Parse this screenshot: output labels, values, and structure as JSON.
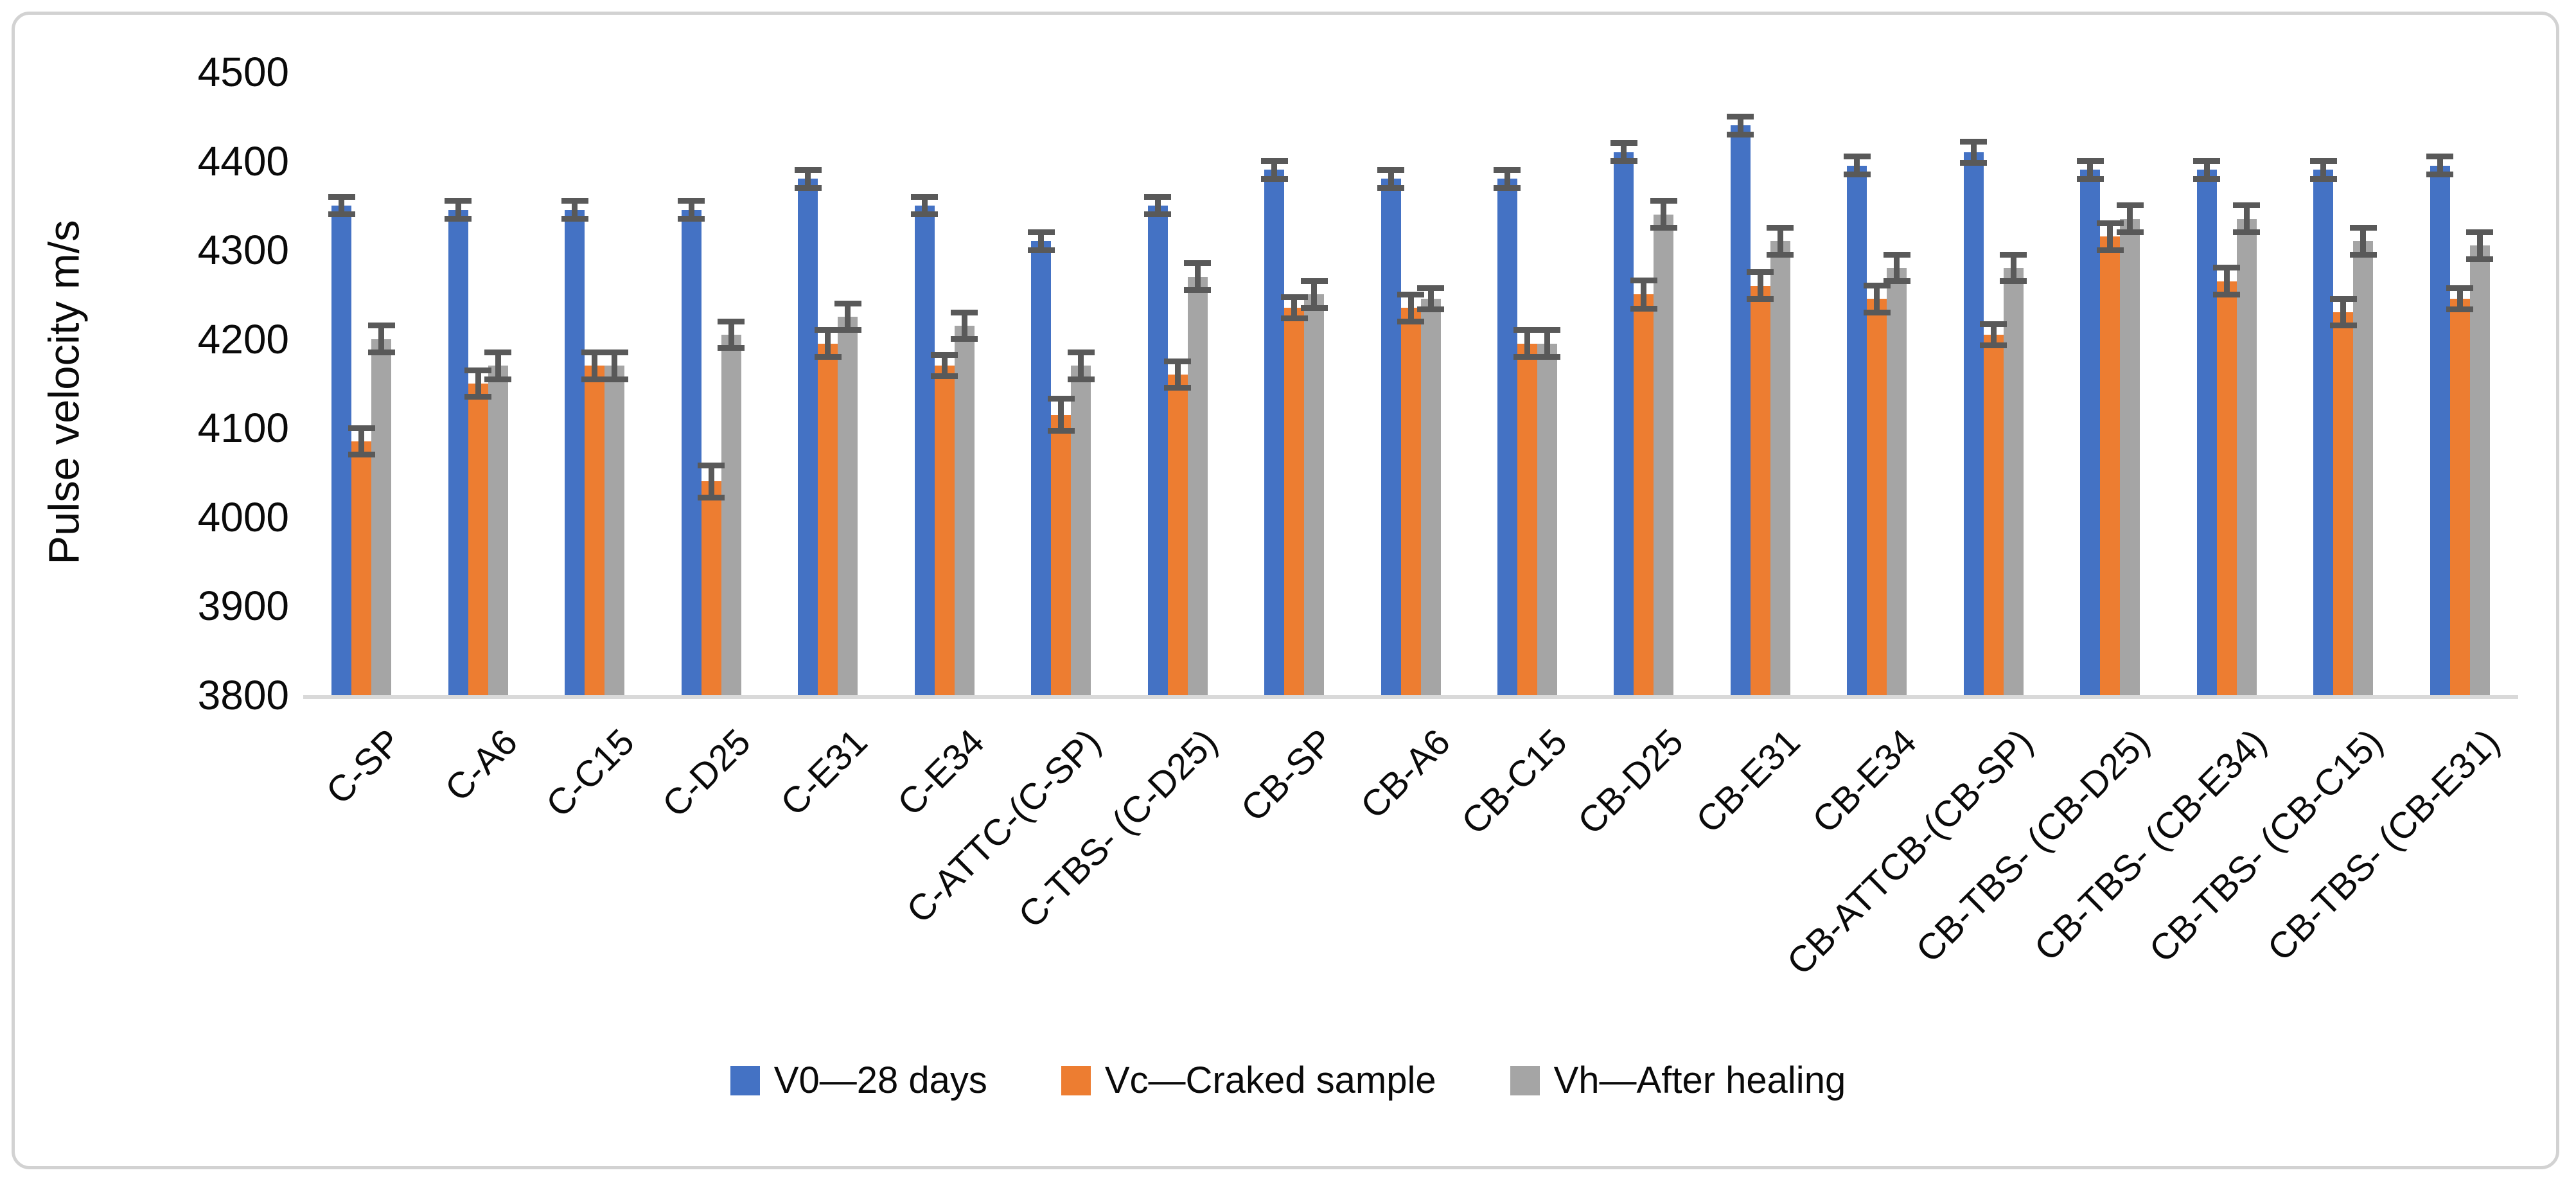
{
  "chart_data": {
    "type": "bar",
    "title": "",
    "ylabel": "Pulse velocity m/s",
    "xlabel": "",
    "ylim": [
      3800,
      4500
    ],
    "ytick_step": 100,
    "yticks": [
      4500,
      4400,
      4300,
      4200,
      4100,
      4000,
      3900,
      3800
    ],
    "grid": false,
    "legend_position": "bottom",
    "error_bar_color": "#595959",
    "axis_line_color": "#d9d9d9",
    "categories": [
      "C-SP",
      "C-A6",
      "C-C15",
      "C-D25",
      "C-E31",
      "C-E34",
      "C-ATTC-(C-SP)",
      "C-TBS- (C-D25)",
      "CB-SP",
      "CB-A6",
      "CB-C15",
      "CB-D25",
      "CB-E31",
      "CB-E34",
      "CB-ATTCB-(CB-SP)",
      "CB-TBS- (CB-D25)",
      "CB-TBS- (CB-E34)",
      "CB-TBS- (CB-C15)",
      "CB-TBS- (CB-E31)"
    ],
    "series": [
      {
        "key": "v0",
        "name": "V0—28 days",
        "color": "#4472C4",
        "values": [
          4350,
          4345,
          4345,
          4345,
          4380,
          4350,
          4310,
          4350,
          4390,
          4380,
          4380,
          4410,
          4440,
          4395,
          4410,
          4390,
          4390,
          4390,
          4395
        ],
        "errors": [
          10,
          10,
          10,
          10,
          10,
          10,
          10,
          10,
          10,
          10,
          10,
          10,
          10,
          10,
          12,
          10,
          10,
          10,
          10
        ]
      },
      {
        "key": "vc",
        "name": "Vc—Craked sample",
        "color": "#ED7D31",
        "values": [
          4085,
          4150,
          4170,
          4040,
          4195,
          4170,
          4115,
          4160,
          4235,
          4235,
          4195,
          4250,
          4260,
          4245,
          4205,
          4315,
          4265,
          4230,
          4245
        ],
        "errors": [
          15,
          15,
          15,
          18,
          15,
          12,
          18,
          15,
          12,
          15,
          15,
          16,
          15,
          15,
          12,
          15,
          15,
          15,
          12
        ]
      },
      {
        "key": "vh",
        "name": "Vh—After healing",
        "color": "#A5A5A5",
        "values": [
          4200,
          4170,
          4170,
          4205,
          4225,
          4215,
          4170,
          4270,
          4250,
          4245,
          4195,
          4340,
          4310,
          4280,
          4280,
          4335,
          4335,
          4310,
          4305
        ],
        "errors": [
          15,
          15,
          15,
          15,
          15,
          15,
          15,
          15,
          15,
          12,
          15,
          15,
          15,
          15,
          15,
          15,
          15,
          15,
          15
        ]
      }
    ]
  }
}
